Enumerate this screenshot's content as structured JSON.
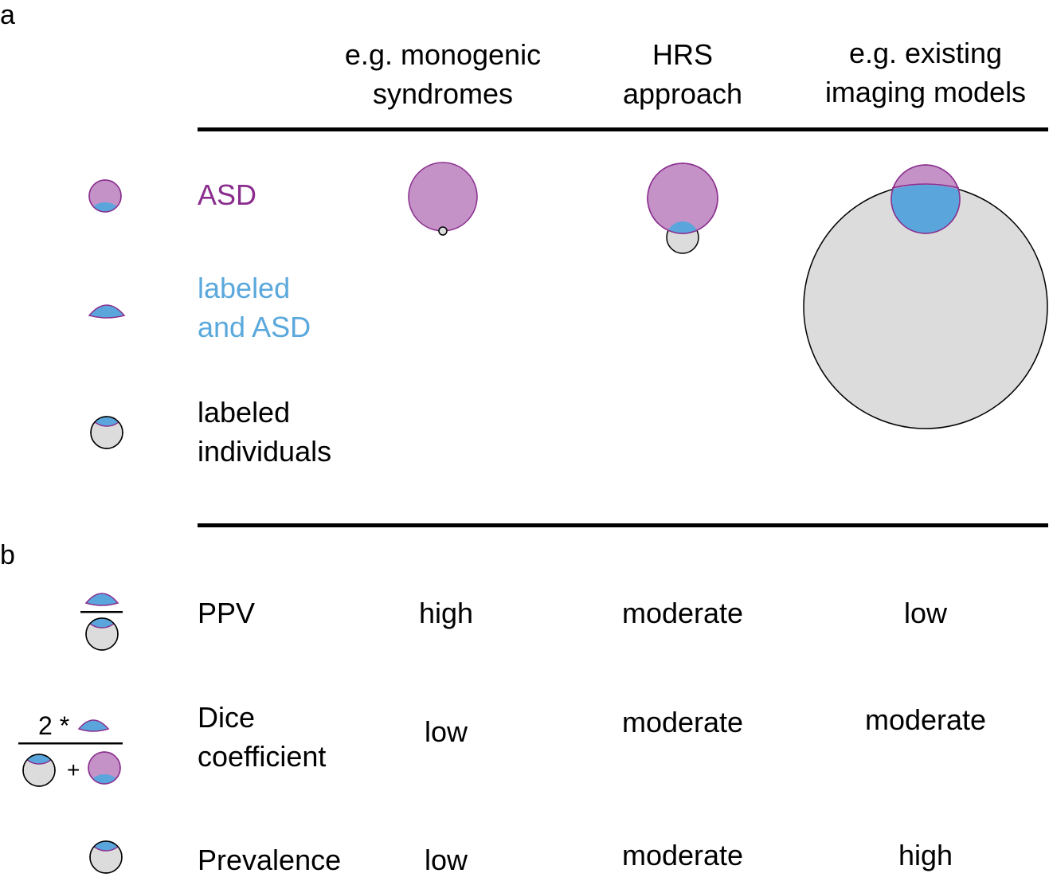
{
  "panels": {
    "a": "a",
    "b": "b"
  },
  "columns": [
    {
      "line1": "e.g. monogenic",
      "line2": "syndromes"
    },
    {
      "line1": "HRS",
      "line2": "approach"
    },
    {
      "line1": "e.g. existing",
      "line2": "imaging models"
    }
  ],
  "legend": {
    "asd": "ASD",
    "labeled_and_asd": {
      "line1": "labeled",
      "line2": "and ASD"
    },
    "labeled_individuals": {
      "line1": "labeled",
      "line2": "individuals"
    }
  },
  "metrics": [
    {
      "name_line1": "PPV",
      "name_line2": "",
      "values": [
        "high",
        "moderate",
        "low"
      ]
    },
    {
      "name_line1": "Dice",
      "name_line2": "coefficient",
      "values": [
        "low",
        "moderate",
        "moderate"
      ]
    },
    {
      "name_line1": "Prevalence",
      "name_line2": "",
      "values": [
        "low",
        "moderate",
        "high"
      ]
    }
  ],
  "dice_formula": {
    "numerator_prefix": "2 *",
    "plus": "+"
  },
  "colors": {
    "asd": "#c492c7",
    "asd_stroke": "#8b2f8f",
    "overlap": "#5aa6dc",
    "labeled": "#dcdcdd",
    "asd_text": "#8a2d8e",
    "labeled_and_asd_text": "#5aa8dc"
  }
}
